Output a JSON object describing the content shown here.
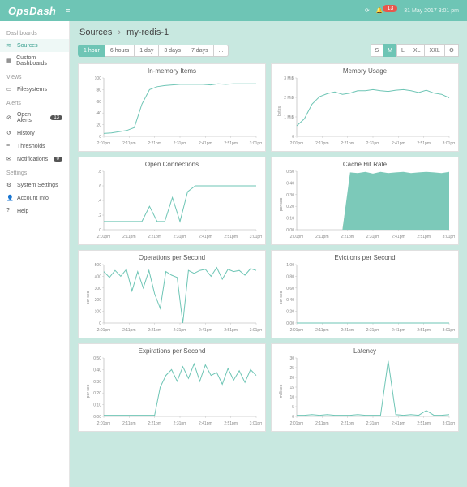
{
  "brand": "OpsDash",
  "topbar": {
    "alert_count": "13",
    "datetime": "31 May 2017 3:01 pm"
  },
  "sidebar": {
    "sections": [
      {
        "title": "Dashboards",
        "items": [
          {
            "label": "Sources",
            "icon": "sources",
            "active": true
          },
          {
            "label": "Custom Dashboards",
            "icon": "custom"
          }
        ]
      },
      {
        "title": "Views",
        "items": [
          {
            "label": "Filesystems",
            "icon": "fs"
          }
        ]
      },
      {
        "title": "Alerts",
        "items": [
          {
            "label": "Open Alerts",
            "icon": "alert",
            "count": "13"
          },
          {
            "label": "History",
            "icon": "history"
          },
          {
            "label": "Thresholds",
            "icon": "threshold"
          },
          {
            "label": "Notifications",
            "icon": "notif",
            "count": "0"
          }
        ]
      },
      {
        "title": "Settings",
        "items": [
          {
            "label": "System Settings",
            "icon": "gear"
          },
          {
            "label": "Account Info",
            "icon": "account"
          },
          {
            "label": "Help",
            "icon": "help"
          }
        ]
      }
    ]
  },
  "breadcrumb": {
    "root": "Sources",
    "current": "my-redis-1"
  },
  "time_ranges": [
    "1 hour",
    "6 hours",
    "1 day",
    "3 days",
    "7 days",
    "..."
  ],
  "time_range_active": 0,
  "sizes": [
    "S",
    "M",
    "L",
    "XL",
    "XXL"
  ],
  "size_active": 1,
  "xticks": [
    "2:01pm",
    "2:11pm",
    "2:21pm",
    "2:31pm",
    "2:41pm",
    "2:51pm",
    "3:01pm"
  ],
  "charts": [
    {
      "title": "In-memory Items",
      "ylabel": "",
      "yticks": [
        "0",
        "20",
        "40",
        "60",
        "80",
        "100"
      ],
      "series": [
        {
          "type": "line",
          "color": "#6ec5b5",
          "data": [
            0.05,
            0.06,
            0.08,
            0.1,
            0.15,
            0.55,
            0.8,
            0.85,
            0.87,
            0.88,
            0.89,
            0.89,
            0.89,
            0.89,
            0.88,
            0.9,
            0.89,
            0.9,
            0.9,
            0.9,
            0.9
          ]
        }
      ]
    },
    {
      "title": "Memory Usage",
      "ylabel": "bytes",
      "yticks": [
        "0",
        "1 MiB",
        "2 MiB",
        "3 MiB"
      ],
      "series": [
        {
          "type": "line",
          "color": "#6ec5b5",
          "data": [
            0.18,
            0.3,
            0.55,
            0.68,
            0.73,
            0.76,
            0.72,
            0.74,
            0.78,
            0.78,
            0.8,
            0.78,
            0.77,
            0.79,
            0.8,
            0.78,
            0.75,
            0.79,
            0.74,
            0.72,
            0.66
          ]
        }
      ]
    },
    {
      "title": "Open Connections",
      "ylabel": "",
      "yticks": [
        "0",
        ".2",
        ".4",
        ".6",
        ".8"
      ],
      "series": [
        {
          "type": "line",
          "color": "#6ec5b5",
          "data": [
            0.14,
            0.14,
            0.14,
            0.14,
            0.14,
            0.14,
            0.4,
            0.14,
            0.14,
            0.55,
            0.14,
            0.65,
            0.75,
            0.75,
            0.75,
            0.75,
            0.75,
            0.75,
            0.75,
            0.75,
            0.75
          ]
        }
      ]
    },
    {
      "title": "Cache Hit Rate",
      "ylabel": "per sec",
      "yticks": [
        "0.00",
        "0.10",
        "0.20",
        "0.30",
        "0.40",
        "0.50"
      ],
      "series": [
        {
          "type": "area",
          "color": "#f3a07a",
          "data": [
            0,
            0,
            0,
            0,
            0,
            0,
            0,
            0.92,
            0.92,
            0.92,
            0.92,
            0.92,
            0.92,
            0.92,
            0.92,
            0.92,
            0.92,
            0.92,
            0.92,
            0.92,
            0.92
          ]
        },
        {
          "type": "area2",
          "color": "#7cc9b9",
          "data": [
            0,
            0,
            0,
            0,
            0,
            0,
            0,
            0.98,
            0.97,
            0.99,
            0.96,
            0.99,
            0.97,
            0.98,
            0.99,
            0.97,
            0.98,
            0.99,
            0.98,
            0.97,
            0.99
          ]
        }
      ]
    },
    {
      "title": "Operations per Second",
      "ylabel": "per sec",
      "yticks": [
        "0",
        "100",
        "200",
        "300",
        "400",
        "500"
      ],
      "series": [
        {
          "type": "line",
          "color": "#6ec5b5",
          "data": [
            0.88,
            0.78,
            0.9,
            0.8,
            0.92,
            0.55,
            0.88,
            0.6,
            0.9,
            0.5,
            0.25,
            0.88,
            0.82,
            0.78,
            0.0,
            0.9,
            0.85,
            0.9,
            0.92,
            0.8,
            0.95,
            0.75,
            0.92,
            0.88,
            0.9,
            0.82,
            0.93,
            0.9
          ]
        }
      ]
    },
    {
      "title": "Evictions per Second",
      "ylabel": "per sec",
      "yticks": [
        "0.00",
        "0.20",
        "0.40",
        "0.60",
        "0.80",
        "1.00"
      ],
      "series": [
        {
          "type": "line",
          "color": "#6ec5b5",
          "data": [
            0,
            0,
            0,
            0,
            0,
            0,
            0,
            0,
            0,
            0,
            0,
            0,
            0,
            0,
            0,
            0,
            0,
            0,
            0,
            0,
            0
          ]
        }
      ]
    },
    {
      "title": "Expirations per Second",
      "ylabel": "per sec",
      "yticks": [
        "0.00",
        "0.10",
        "0.20",
        "0.30",
        "0.40",
        "0.50"
      ],
      "series": [
        {
          "type": "line",
          "color": "#6ec5b5",
          "data": [
            0.02,
            0.02,
            0.02,
            0.02,
            0.02,
            0.02,
            0.02,
            0.02,
            0.02,
            0.02,
            0.5,
            0.7,
            0.8,
            0.6,
            0.85,
            0.65,
            0.9,
            0.6,
            0.88,
            0.7,
            0.75,
            0.55,
            0.82,
            0.62,
            0.78,
            0.58,
            0.8,
            0.7
          ]
        }
      ]
    },
    {
      "title": "Latency",
      "ylabel": "millisec",
      "yticks": [
        "0",
        "5",
        "10",
        "15",
        "20",
        "25",
        "30"
      ],
      "series": [
        {
          "type": "line",
          "color": "#6ec5b5",
          "data": [
            0.02,
            0.02,
            0.03,
            0.02,
            0.03,
            0.02,
            0.02,
            0.02,
            0.03,
            0.02,
            0.02,
            0.02,
            0.95,
            0.03,
            0.02,
            0.03,
            0.02,
            0.1,
            0.02,
            0.02,
            0.03
          ]
        }
      ]
    }
  ]
}
